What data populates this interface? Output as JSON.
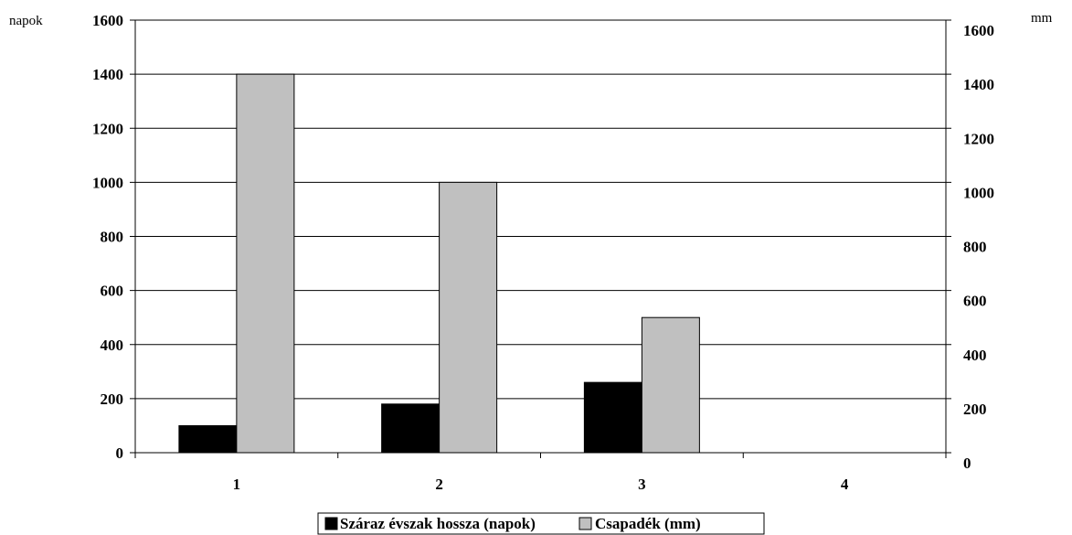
{
  "chart_data": {
    "type": "bar",
    "categories": [
      "1",
      "2",
      "3",
      "4"
    ],
    "series": [
      {
        "name": "Száraz évszak hossza (napok)",
        "values": [
          100,
          180,
          260,
          0
        ],
        "color": "#000000",
        "axis": "left"
      },
      {
        "name": "Csapadék (mm)",
        "values": [
          1400,
          1000,
          500,
          0
        ],
        "color": "#c0c0c0",
        "axis": "right"
      }
    ],
    "y_left": {
      "unit": "napok",
      "min": 0,
      "max": 1600,
      "ticks": [
        "0",
        "200",
        "400",
        "600",
        "800",
        "1000",
        "1200",
        "1400",
        "1600"
      ]
    },
    "y_right": {
      "unit": "mm",
      "min": 0,
      "max": 1600,
      "ticks": [
        "0",
        "200",
        "400",
        "600",
        "800",
        "1000",
        "1200",
        "1400",
        "1600"
      ]
    },
    "grid": true,
    "legend_position": "bottom"
  }
}
